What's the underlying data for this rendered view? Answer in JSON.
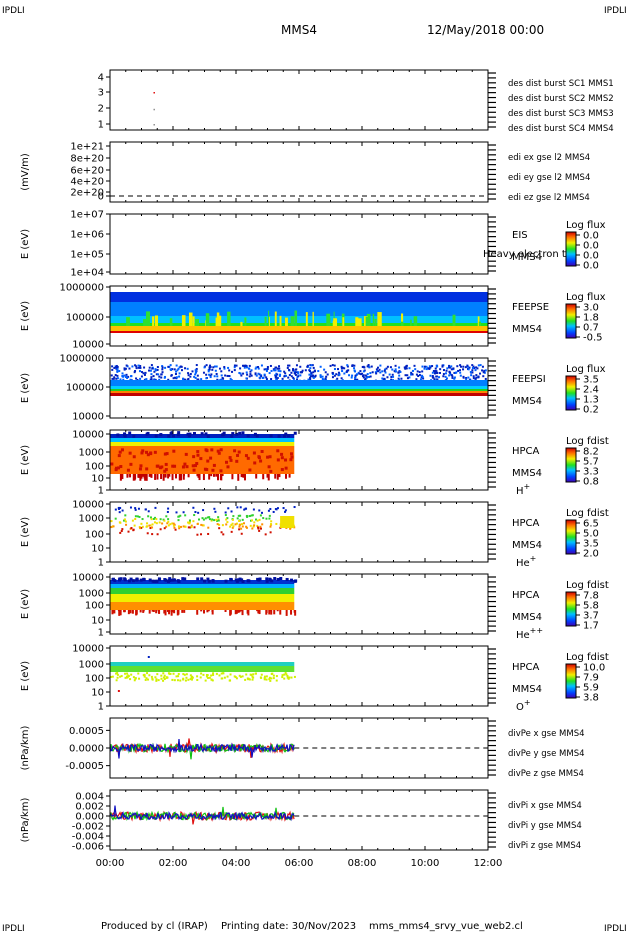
{
  "header": {
    "corner_tl": "IPDLI",
    "corner_tr": "IPDLI",
    "spacecraft": "MMS4",
    "date": "12/May/2018 00:00",
    "corner_bl": "IPDLI",
    "corner_br": "IPDLI"
  },
  "footer": {
    "produced_by": "Produced by cl (IRAP)",
    "printing_date": "Printing date: 30/Nov/2023",
    "file": "mms_mms4_srvy_vue_web2.cl"
  },
  "colors": {
    "MMS1": "#1010c0",
    "MMS2": "#e010e0",
    "MMS3": "#e01010",
    "MMS4": "#10c010"
  },
  "chart_data": {
    "type": "multi-panel",
    "x_axis": {
      "range_hours": [
        0,
        12
      ],
      "tick_labels": [
        "00:00",
        "02:00",
        "04:00",
        "06:00",
        "08:00",
        "10:00",
        "12:00"
      ]
    },
    "panels": [
      {
        "id": "burst",
        "type": "scatter",
        "y_ticks": [
          "4",
          "3",
          "2",
          "1"
        ],
        "legend": [
          {
            "text": "des dist burst SC1 MMS1",
            "color": "#1010c0"
          },
          {
            "text": "des dist burst SC2 MMS2",
            "color": "#e010e0"
          },
          {
            "text": "des dist burst SC3 MMS3",
            "color": "#e01010"
          },
          {
            "text": "des dist burst SC4 MMS4",
            "color": "#10c010"
          }
        ],
        "points": [
          {
            "x": 1.38,
            "y": 3.0,
            "color": "#e01010"
          },
          {
            "x": 1.38,
            "y": 1.95,
            "color": "#909090"
          },
          {
            "x": 1.38,
            "y": 1.0,
            "color": "#909090"
          }
        ]
      },
      {
        "id": "edi",
        "type": "line",
        "ylabel": "(mV/m)",
        "y_ticks": [
          "1e+21",
          "8e+20",
          "6e+20",
          "4e+20",
          "2e+20",
          "0"
        ],
        "legend": [
          {
            "text": "edi ex gse l2 MMS4",
            "color": "#e01010"
          },
          {
            "text": "edi ey gse l2 MMS4",
            "color": "#10c010"
          },
          {
            "text": "edi ez gse l2 MMS4",
            "color": "#1010c0"
          }
        ]
      },
      {
        "id": "eis",
        "type": "heatmap",
        "ylabel": "E (eV)",
        "y_ticks": [
          "1e+07",
          "1e+06",
          "1e+05",
          "1e+04"
        ],
        "instrument": [
          "EIS",
          "MMS4"
        ],
        "overlay_text": "Heavy electron to",
        "colorbar": {
          "title": "Log flux",
          "values": [
            "0.0",
            "0.0",
            "0.0",
            "0.0"
          ]
        }
      },
      {
        "id": "feepse",
        "type": "heatmap",
        "ylabel": "E (eV)",
        "y_ticks": [
          "1000000",
          "100000",
          "10000"
        ],
        "instrument": [
          "FEEPSE",
          "MMS4"
        ],
        "colorbar": {
          "title": "Log flux",
          "values": [
            "3.0",
            "1.8",
            "0.7",
            "-0.5"
          ]
        },
        "data_end_hours": 12
      },
      {
        "id": "feepsi",
        "type": "heatmap",
        "ylabel": "E (eV)",
        "y_ticks": [
          "1000000",
          "100000",
          "10000"
        ],
        "instrument": [
          "FEEPSI",
          "MMS4"
        ],
        "colorbar": {
          "title": "Log flux",
          "values": [
            "3.5",
            "2.4",
            "1.3",
            "0.2"
          ]
        },
        "data_end_hours": 12
      },
      {
        "id": "hpca_h",
        "type": "heatmap",
        "ylabel": "E (eV)",
        "y_ticks": [
          "10000",
          "1000",
          "100",
          "10",
          "1"
        ],
        "instrument": [
          "HPCA",
          "MMS4"
        ],
        "species": "H",
        "species_sup": "+",
        "colorbar": {
          "title": "Log fdist",
          "values": [
            "8.2",
            "5.7",
            "3.3",
            "0.8"
          ]
        },
        "data_end_hours": 5.85
      },
      {
        "id": "hpca_he",
        "type": "heatmap",
        "ylabel": "E (eV)",
        "y_ticks": [
          "10000",
          "1000",
          "100",
          "10",
          "1"
        ],
        "instrument": [
          "HPCA",
          "MMS4"
        ],
        "species": "He",
        "species_sup": "+",
        "colorbar": {
          "title": "Log fdist",
          "values": [
            "6.5",
            "5.0",
            "3.5",
            "2.0"
          ]
        },
        "data_end_hours": 5.85
      },
      {
        "id": "hpca_hepp",
        "type": "heatmap",
        "ylabel": "E (eV)",
        "y_ticks": [
          "10000",
          "1000",
          "100",
          "10",
          "1"
        ],
        "instrument": [
          "HPCA",
          "MMS4"
        ],
        "species": "He",
        "species_sup": "++",
        "colorbar": {
          "title": "Log fdist",
          "values": [
            "7.8",
            "5.8",
            "3.7",
            "1.7"
          ]
        },
        "data_end_hours": 5.85
      },
      {
        "id": "hpca_o",
        "type": "heatmap",
        "ylabel": "E (eV)",
        "y_ticks": [
          "10000",
          "1000",
          "100",
          "10",
          "1"
        ],
        "instrument": [
          "HPCA",
          "MMS4"
        ],
        "species": "O",
        "species_sup": "+",
        "colorbar": {
          "title": "Log fdist",
          "values": [
            "10.0",
            "7.9",
            "5.9",
            "3.8"
          ]
        },
        "data_end_hours": 5.85
      },
      {
        "id": "divpe",
        "type": "line",
        "ylabel": "(nPa/km)",
        "y_ticks": [
          "0.0005",
          "0.0000",
          "-0.0005"
        ],
        "y_values": [
          0.0005,
          0,
          -0.0005
        ],
        "ylim": [
          -0.00085,
          0.00085
        ],
        "legend": [
          {
            "text": "divPe x gse MMS4",
            "color": "#e01010"
          },
          {
            "text": "divPe y gse MMS4",
            "color": "#10c010"
          },
          {
            "text": "divPe z gse MMS4",
            "color": "#1010c0"
          }
        ],
        "data_end_hours": 5.85
      },
      {
        "id": "divpi",
        "type": "line",
        "ylabel": "(nPa/km)",
        "y_ticks": [
          "0.004",
          "0.002",
          "0.000",
          "-0.002",
          "-0.004",
          "-0.006"
        ],
        "y_values": [
          0.004,
          0.002,
          0,
          -0.002,
          -0.004,
          -0.006
        ],
        "ylim": [
          -0.0068,
          0.0052
        ],
        "legend": [
          {
            "text": "divPi x gse MMS4",
            "color": "#e01010"
          },
          {
            "text": "divPi y gse MMS4",
            "color": "#10c010"
          },
          {
            "text": "divPi z gse MMS4",
            "color": "#1010c0"
          }
        ],
        "data_end_hours": 5.85
      }
    ]
  }
}
